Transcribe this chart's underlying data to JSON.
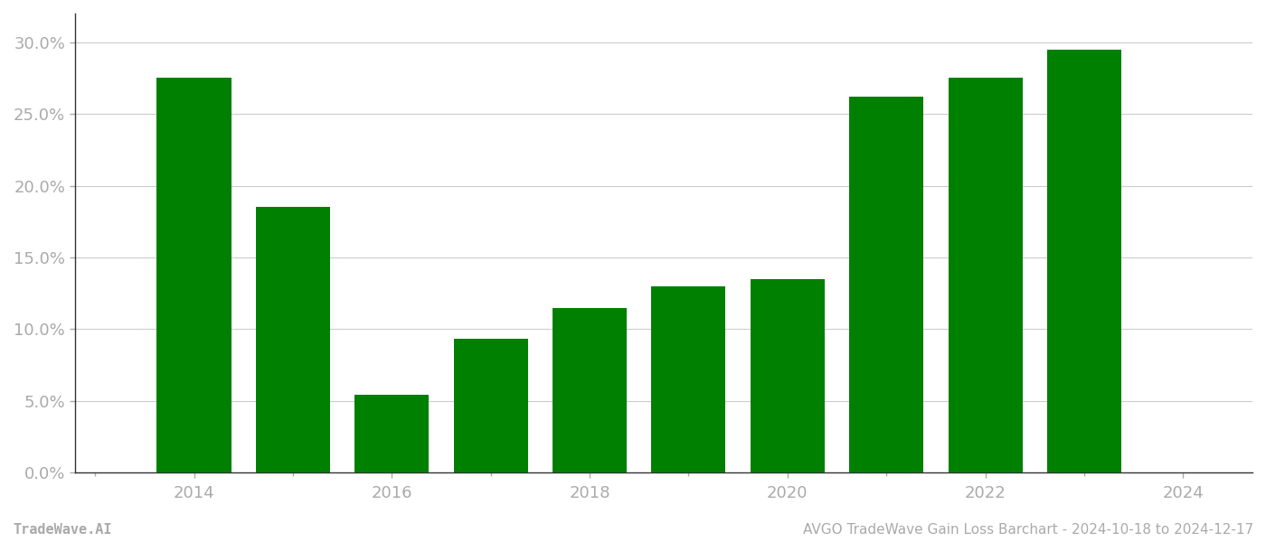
{
  "years": [
    2014,
    2015,
    2016,
    2017,
    2018,
    2019,
    2020,
    2021,
    2022,
    2023
  ],
  "values": [
    0.275,
    0.185,
    0.054,
    0.093,
    0.115,
    0.13,
    0.135,
    0.262,
    0.275,
    0.295
  ],
  "bar_color": "#008000",
  "background_color": "#ffffff",
  "grid_color": "#cccccc",
  "title": "AVGO TradeWave Gain Loss Barchart - 2024-10-18 to 2024-12-17",
  "watermark": "TradeWave.AI",
  "ylim": [
    0,
    0.32
  ],
  "yticks": [
    0.0,
    0.05,
    0.1,
    0.15,
    0.2,
    0.25,
    0.3
  ],
  "xtick_labels": [
    2014,
    2016,
    2018,
    2020,
    2022,
    2024
  ],
  "xtick_minor": [
    2013,
    2014,
    2015,
    2016,
    2017,
    2018,
    2019,
    2020,
    2021,
    2022,
    2023,
    2024
  ],
  "xlim": [
    2012.8,
    2024.7
  ],
  "bar_width": 0.75,
  "title_fontsize": 11,
  "watermark_fontsize": 11,
  "tick_fontsize": 13,
  "tick_color": "#aaaaaa",
  "spine_color": "#333333"
}
